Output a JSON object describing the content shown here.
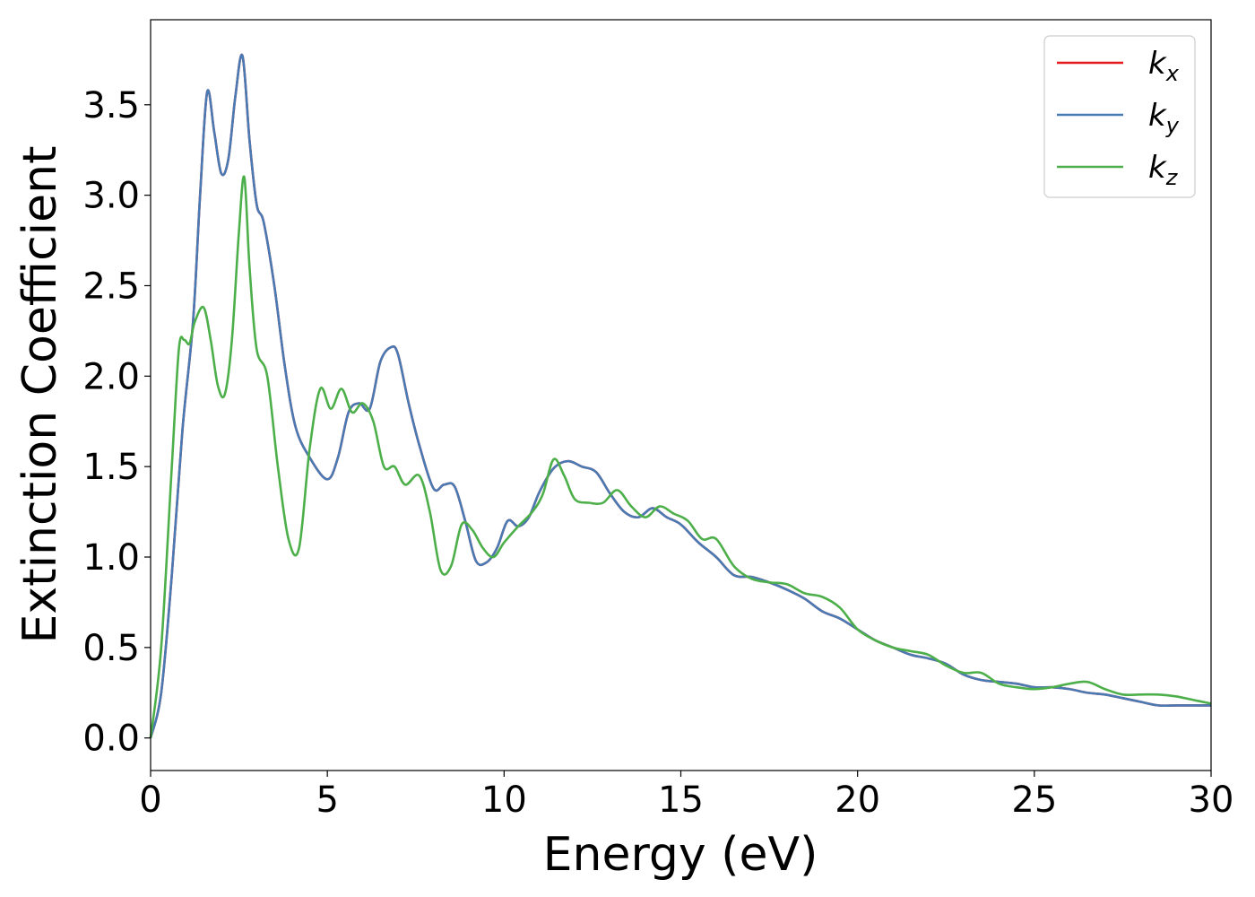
{
  "chart_data": {
    "type": "line",
    "title": "",
    "xlabel": "Energy (eV)",
    "ylabel": "Extinction Coefficient",
    "xlim": [
      0,
      30
    ],
    "ylim": [
      -0.18,
      3.97
    ],
    "xticks": [
      0,
      5,
      10,
      15,
      20,
      25,
      30
    ],
    "xtick_labels": [
      "0",
      "5",
      "10",
      "15",
      "20",
      "25",
      "30"
    ],
    "yticks": [
      0.0,
      0.5,
      1.0,
      1.5,
      2.0,
      2.5,
      3.0,
      3.5
    ],
    "ytick_labels": [
      "0.0",
      "0.5",
      "1.0",
      "1.5",
      "2.0",
      "2.5",
      "3.0",
      "3.5"
    ],
    "grid": false,
    "legend_position": "top-right",
    "series": [
      {
        "name": "k_x",
        "legend_base": "k",
        "legend_sub": "x",
        "color": "#e41a1c",
        "x": [
          0,
          0.3,
          0.6,
          0.9,
          1.2,
          1.4,
          1.6,
          1.8,
          2.0,
          2.2,
          2.4,
          2.6,
          2.8,
          3.0,
          3.2,
          3.5,
          3.8,
          4.1,
          4.5,
          5.0,
          5.3,
          5.6,
          5.9,
          6.2,
          6.5,
          6.8,
          7.0,
          7.3,
          7.6,
          8.0,
          8.3,
          8.6,
          8.9,
          9.2,
          9.5,
          9.8,
          10.1,
          10.4,
          10.7,
          11.0,
          11.4,
          11.8,
          12.2,
          12.6,
          13.0,
          13.4,
          13.8,
          14.2,
          14.6,
          15.0,
          15.5,
          16.0,
          16.5,
          17.0,
          17.5,
          18.0,
          18.5,
          19.0,
          19.5,
          20.0,
          20.5,
          21.0,
          21.5,
          22.0,
          22.5,
          23.0,
          23.5,
          24.0,
          24.5,
          25.0,
          25.5,
          26.0,
          26.5,
          27.0,
          27.5,
          28.0,
          28.5,
          29.0,
          29.5,
          30.0
        ],
        "y": [
          0.0,
          0.25,
          0.9,
          1.7,
          2.3,
          3.0,
          3.57,
          3.35,
          3.12,
          3.2,
          3.55,
          3.77,
          3.3,
          2.95,
          2.85,
          2.5,
          2.05,
          1.72,
          1.55,
          1.43,
          1.55,
          1.8,
          1.85,
          1.82,
          2.08,
          2.16,
          2.12,
          1.85,
          1.62,
          1.38,
          1.4,
          1.39,
          1.2,
          0.98,
          0.97,
          1.05,
          1.2,
          1.17,
          1.22,
          1.36,
          1.49,
          1.53,
          1.5,
          1.47,
          1.35,
          1.25,
          1.22,
          1.27,
          1.22,
          1.18,
          1.08,
          1.0,
          0.9,
          0.89,
          0.86,
          0.82,
          0.77,
          0.7,
          0.66,
          0.6,
          0.54,
          0.5,
          0.46,
          0.44,
          0.41,
          0.35,
          0.32,
          0.31,
          0.3,
          0.28,
          0.28,
          0.27,
          0.25,
          0.24,
          0.22,
          0.2,
          0.18,
          0.18,
          0.18,
          0.18
        ]
      },
      {
        "name": "k_y",
        "legend_base": "k",
        "legend_sub": "y",
        "color": "#4a7ab3",
        "x": [
          0,
          0.3,
          0.6,
          0.9,
          1.2,
          1.4,
          1.6,
          1.8,
          2.0,
          2.2,
          2.4,
          2.6,
          2.8,
          3.0,
          3.2,
          3.5,
          3.8,
          4.1,
          4.5,
          5.0,
          5.3,
          5.6,
          5.9,
          6.2,
          6.5,
          6.8,
          7.0,
          7.3,
          7.6,
          8.0,
          8.3,
          8.6,
          8.9,
          9.2,
          9.5,
          9.8,
          10.1,
          10.4,
          10.7,
          11.0,
          11.4,
          11.8,
          12.2,
          12.6,
          13.0,
          13.4,
          13.8,
          14.2,
          14.6,
          15.0,
          15.5,
          16.0,
          16.5,
          17.0,
          17.5,
          18.0,
          18.5,
          19.0,
          19.5,
          20.0,
          20.5,
          21.0,
          21.5,
          22.0,
          22.5,
          23.0,
          23.5,
          24.0,
          24.5,
          25.0,
          25.5,
          26.0,
          26.5,
          27.0,
          27.5,
          28.0,
          28.5,
          29.0,
          29.5,
          30.0
        ],
        "y": [
          0.0,
          0.25,
          0.9,
          1.7,
          2.3,
          3.0,
          3.57,
          3.35,
          3.12,
          3.2,
          3.55,
          3.77,
          3.3,
          2.95,
          2.85,
          2.5,
          2.05,
          1.72,
          1.55,
          1.43,
          1.55,
          1.8,
          1.85,
          1.82,
          2.08,
          2.16,
          2.12,
          1.85,
          1.62,
          1.38,
          1.4,
          1.39,
          1.2,
          0.98,
          0.97,
          1.05,
          1.2,
          1.17,
          1.22,
          1.36,
          1.49,
          1.53,
          1.5,
          1.47,
          1.35,
          1.25,
          1.22,
          1.27,
          1.22,
          1.18,
          1.08,
          1.0,
          0.9,
          0.89,
          0.86,
          0.82,
          0.77,
          0.7,
          0.66,
          0.6,
          0.54,
          0.5,
          0.46,
          0.44,
          0.41,
          0.35,
          0.32,
          0.31,
          0.3,
          0.28,
          0.28,
          0.27,
          0.25,
          0.24,
          0.22,
          0.2,
          0.18,
          0.18,
          0.18,
          0.18
        ]
      },
      {
        "name": "k_z",
        "legend_base": "k",
        "legend_sub": "z",
        "color": "#4daf4a",
        "x": [
          0,
          0.3,
          0.6,
          0.8,
          0.95,
          1.1,
          1.25,
          1.5,
          1.7,
          1.9,
          2.1,
          2.3,
          2.5,
          2.65,
          2.8,
          3.0,
          3.3,
          3.6,
          3.9,
          4.2,
          4.5,
          4.8,
          5.1,
          5.4,
          5.7,
          6.0,
          6.3,
          6.6,
          6.9,
          7.2,
          7.6,
          7.9,
          8.2,
          8.5,
          8.8,
          9.1,
          9.4,
          9.7,
          10.0,
          10.4,
          10.8,
          11.1,
          11.4,
          11.7,
          12.0,
          12.4,
          12.8,
          13.2,
          13.6,
          14.0,
          14.4,
          14.8,
          15.2,
          15.6,
          16.0,
          16.5,
          17.0,
          17.5,
          18.0,
          18.5,
          19.0,
          19.5,
          20.0,
          20.5,
          21.0,
          21.5,
          22.0,
          22.5,
          23.0,
          23.5,
          24.0,
          24.5,
          25.0,
          25.5,
          26.0,
          26.5,
          27.0,
          27.5,
          28.0,
          28.5,
          29.0,
          29.5,
          30.0
        ],
        "y": [
          0.0,
          0.5,
          1.5,
          2.15,
          2.2,
          2.18,
          2.3,
          2.38,
          2.2,
          1.95,
          1.9,
          2.2,
          2.8,
          3.1,
          2.6,
          2.15,
          2.0,
          1.5,
          1.1,
          1.05,
          1.6,
          1.93,
          1.82,
          1.93,
          1.8,
          1.85,
          1.75,
          1.5,
          1.5,
          1.4,
          1.45,
          1.25,
          0.93,
          0.95,
          1.18,
          1.15,
          1.05,
          1.0,
          1.08,
          1.17,
          1.25,
          1.35,
          1.54,
          1.45,
          1.32,
          1.3,
          1.3,
          1.37,
          1.28,
          1.22,
          1.28,
          1.24,
          1.2,
          1.1,
          1.1,
          0.95,
          0.88,
          0.86,
          0.85,
          0.8,
          0.78,
          0.72,
          0.6,
          0.54,
          0.5,
          0.48,
          0.46,
          0.4,
          0.36,
          0.36,
          0.3,
          0.28,
          0.27,
          0.28,
          0.3,
          0.31,
          0.27,
          0.24,
          0.24,
          0.24,
          0.23,
          0.21,
          0.19
        ]
      }
    ]
  }
}
